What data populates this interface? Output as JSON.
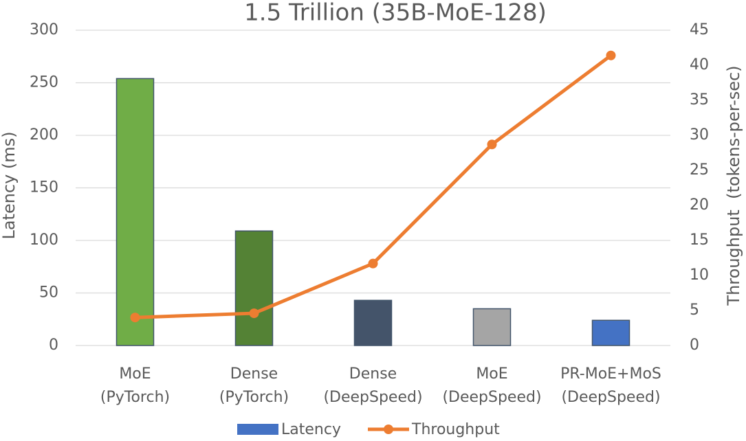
{
  "chart_data": {
    "type": "bar-line",
    "title": "1.5 Trillion (35B-MoE-128)",
    "y_label": "Latency (ms)",
    "y2_label": "Throughput  (tokens-per-sec)",
    "categories": [
      "MoE\n(PyTorch)",
      "Dense\n(PyTorch)",
      "Dense\n(DeepSpeed)",
      "MoE\n(DeepSpeed)",
      "PR-MoE+MoS\n(DeepSpeed)"
    ],
    "series": [
      {
        "name": "Latency",
        "type": "bar",
        "color": "#4472c4",
        "colors": [
          "#70ad47",
          "#548235",
          "#44546a",
          "#a5a5a5",
          "#4472c4"
        ],
        "values": [
          254,
          109,
          43,
          35,
          24
        ]
      },
      {
        "name": "Throughput",
        "type": "line",
        "axis": "y2",
        "color": "#ed7d31",
        "values": [
          4,
          4.6,
          11.7,
          28.7,
          41.4
        ]
      }
    ],
    "ylim": [
      0,
      300
    ],
    "yticks": [
      0,
      50,
      100,
      150,
      200,
      250,
      300
    ],
    "y2lim": [
      0,
      45
    ],
    "y2ticks": [
      0,
      5,
      10,
      15,
      20,
      25,
      30,
      35,
      40,
      45
    ],
    "grid": true,
    "legend": "bottom"
  }
}
